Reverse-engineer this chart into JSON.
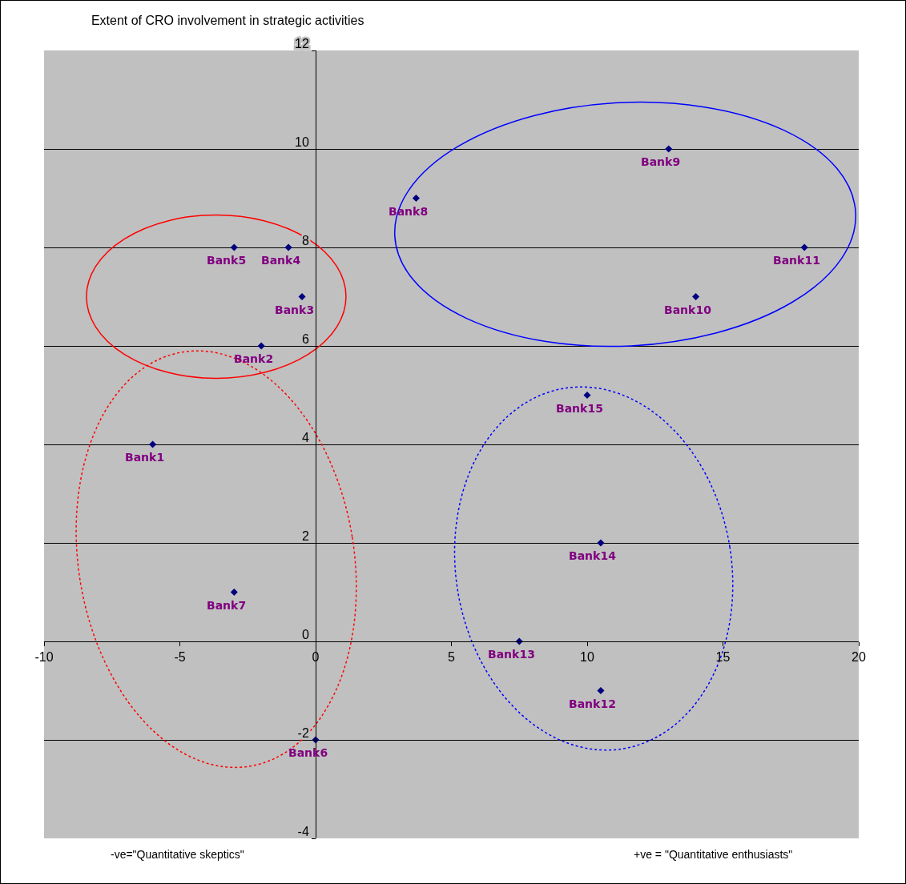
{
  "chart_data": {
    "type": "scatter",
    "title": "Extent of CRO involvement in strategic activities",
    "series": [
      {
        "color": "#000080",
        "x": [
          -6,
          -2,
          -0.5,
          -1,
          -3,
          0,
          -3,
          3.7,
          13,
          14,
          18,
          10.5,
          7.5,
          10.5,
          10
        ],
        "values": [
          4,
          6,
          7,
          8,
          8,
          -2,
          1,
          9,
          10,
          7,
          8,
          -1,
          0,
          2,
          5
        ]
      }
    ],
    "annotations": [
      {
        "text": "Bank1",
        "x": -6,
        "y": 4
      },
      {
        "text": "Bank2",
        "x": -2,
        "y": 6
      },
      {
        "text": "Bank3",
        "x": -0.5,
        "y": 7
      },
      {
        "text": "Bank4",
        "x": -1,
        "y": 8
      },
      {
        "text": "Bank5",
        "x": -3,
        "y": 8
      },
      {
        "text": "Bank6",
        "x": 0,
        "y": -2
      },
      {
        "text": "Bank7",
        "x": -3,
        "y": 1
      },
      {
        "text": "Bank8",
        "x": 3.7,
        "y": 9
      },
      {
        "text": "Bank9",
        "x": 13,
        "y": 10
      },
      {
        "text": "Bank10",
        "x": 14,
        "y": 7
      },
      {
        "text": "Bank11",
        "x": 18,
        "y": 8
      },
      {
        "text": "Bank12",
        "x": 10.5,
        "y": -1
      },
      {
        "text": "Bank13",
        "x": 7.5,
        "y": 0
      },
      {
        "text": "Bank14",
        "x": 10.5,
        "y": 2
      },
      {
        "text": "Bank15",
        "x": 10,
        "y": 5
      },
      "-ve=\"Quantitative skeptics\"",
      "+ve = \"Quantitative enthusiasts\""
    ],
    "xlim": [
      -10,
      20
    ],
    "xticks": [
      -10,
      -5,
      0,
      5,
      10,
      15,
      20
    ],
    "ylim": [
      -4,
      12
    ],
    "yticks": [
      -4,
      -2,
      0,
      2,
      4,
      6,
      8,
      10,
      12
    ],
    "grid": "y",
    "marker": "diamond"
  }
}
